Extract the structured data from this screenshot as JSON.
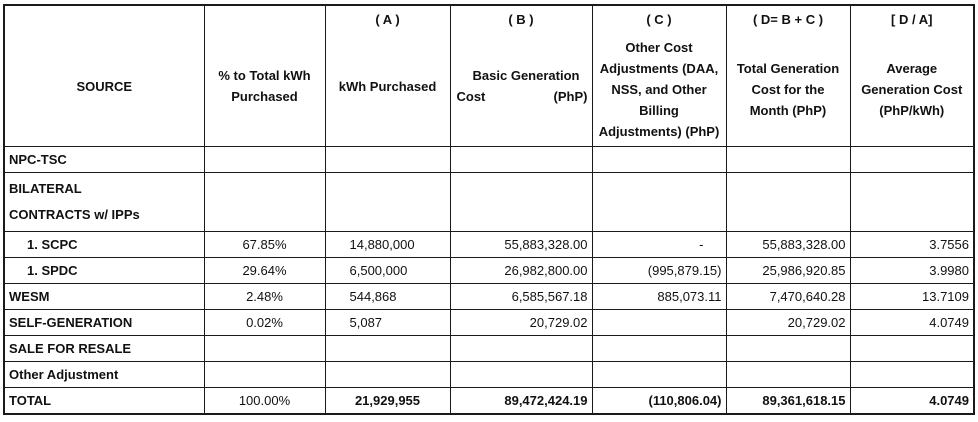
{
  "table": {
    "headers": {
      "source": "SOURCE",
      "pct": [
        "% to Total kWh",
        "Purchased"
      ],
      "a": {
        "tag": "( A )",
        "label": "kWh Purchased"
      },
      "b": {
        "tag": "( B )",
        "label_line1": "Basic Generation",
        "label_line2_left": "Cost",
        "label_line2_right": "(PhP)"
      },
      "c": {
        "tag": "( C )",
        "label": [
          "Other Cost",
          "Adjustments (DAA,",
          "NSS, and Other",
          "Billing",
          "Adjustments) (PhP)"
        ]
      },
      "d": {
        "tag": "( D= B + C )",
        "label": [
          "Total Generation",
          "Cost for the",
          "Month (PhP)"
        ]
      },
      "e": {
        "tag": "[ D / A]",
        "label": [
          "Average",
          "Generation Cost",
          "(PhP/kWh)"
        ]
      }
    },
    "rows": {
      "npc": {
        "source": "NPC-TSC"
      },
      "bilateral": {
        "source_line1": "BILATERAL",
        "source_line2": "CONTRACTS w/ IPPs"
      },
      "scpc": {
        "source": "1.   SCPC",
        "pct": "67.85%",
        "kwh": "14,880,000",
        "basic": "55,883,328.00",
        "other": "-",
        "total": "55,883,328.00",
        "avg": "3.7556"
      },
      "spdc": {
        "source": "1.   SPDC",
        "pct": "29.64%",
        "kwh": "6,500,000",
        "basic": "26,982,800.00",
        "other": "(995,879.15)",
        "total": "25,986,920.85",
        "avg": "3.9980"
      },
      "wesm": {
        "source": "WESM",
        "pct": "2.48%",
        "kwh": "544,868",
        "basic": "6,585,567.18",
        "other": "885,073.11",
        "total": "7,470,640.28",
        "avg": "13.7109"
      },
      "selfgen": {
        "source": "SELF-GENERATION",
        "pct": "0.02%",
        "kwh": "5,087",
        "basic": "20,729.02",
        "other": "",
        "total": "20,729.02",
        "avg": "4.0749"
      },
      "resale": {
        "source": "SALE FOR RESALE"
      },
      "otheradj": {
        "source": "Other Adjustment"
      },
      "total": {
        "source": "TOTAL",
        "pct": "100.00%",
        "kwh": "21,929,955",
        "basic": "89,472,424.19",
        "other": "(110,806.04)",
        "total": "89,361,618.15",
        "avg": "4.0749"
      }
    }
  }
}
